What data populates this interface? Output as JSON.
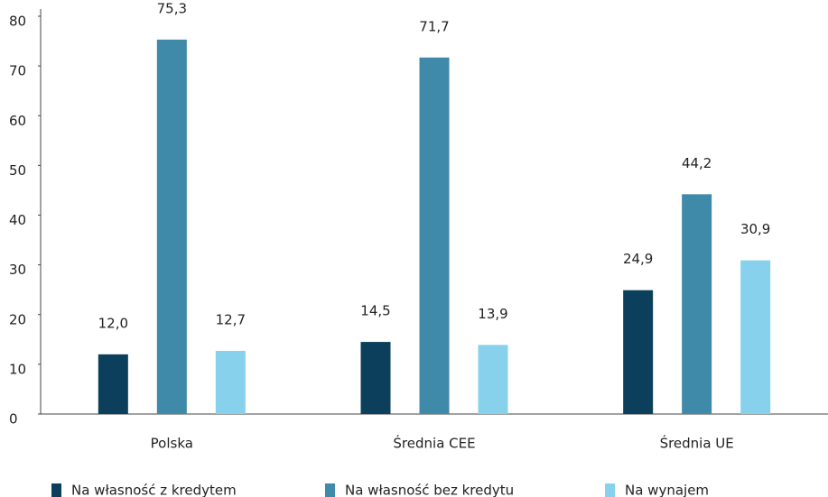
{
  "chart_data": {
    "type": "bar",
    "categories": [
      "Polska",
      "Średnia CEE",
      "Średnia UE"
    ],
    "series": [
      {
        "name": "Na własność z kredytem",
        "color": "#0b3f5c",
        "values": [
          12.0,
          14.5,
          24.9
        ],
        "value_labels": [
          "12,0",
          "14,5",
          "24,9"
        ]
      },
      {
        "name": "Na własność bez kredytu",
        "color": "#3f89a9",
        "values": [
          75.3,
          71.7,
          44.2
        ],
        "value_labels": [
          "75,3",
          "71,7",
          "44,2"
        ]
      },
      {
        "name": "Na wynajem",
        "color": "#87d1ed",
        "values": [
          12.7,
          13.9,
          30.9
        ],
        "value_labels": [
          "12,7",
          "13,9",
          "30,9"
        ]
      }
    ],
    "ylim": [
      0,
      80
    ],
    "yticks": [
      0,
      10,
      20,
      30,
      40,
      50,
      60,
      70,
      80
    ],
    "grid": false,
    "legend": "bottom"
  }
}
